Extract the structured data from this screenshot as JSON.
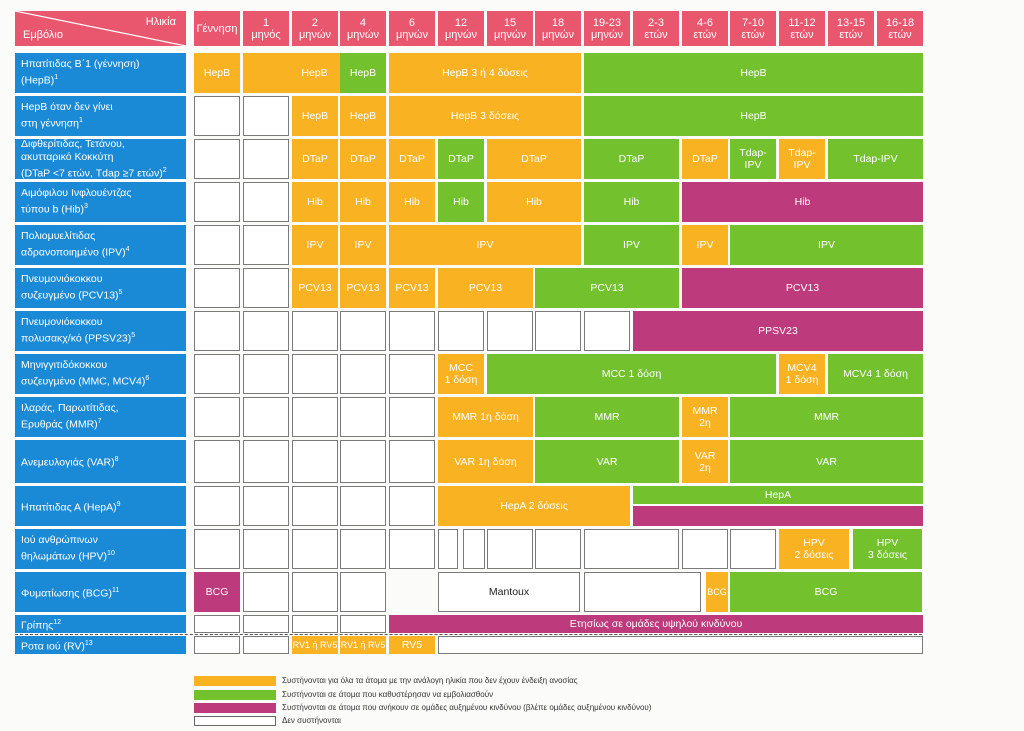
{
  "header": {
    "age_label": "Ηλικία",
    "vaccine_label": "Εμβόλιο",
    "ages": [
      "Γέννηση",
      "1\nμηνός",
      "2\nμηνών",
      "4\nμηνών",
      "6\nμηνών",
      "12\nμηνών",
      "15\nμηνών",
      "18\nμηνών",
      "19-23\nμηνών",
      "2-3\nετών",
      "4-6\nετών",
      "7-10\nετών",
      "11-12\nετών",
      "13-15\nετών",
      "16-18\nετών"
    ]
  },
  "vaccines": [
    {
      "line1": "Ηπατίτιδας Β΄1 (γέννηση)",
      "line2": "(HepB)",
      "sup": "1"
    },
    {
      "line1": "HepB όταν δεν γίνει",
      "line2": "στη γέννηση",
      "sup": "1"
    },
    {
      "line1": "Διφθερίτιδας, Τετάνου,",
      "line2": "ακυτταρικό Κοκκύτη",
      "line3": "(DTaP <7 ετών, Tdap ≥7 ετών)",
      "sup": "2"
    },
    {
      "line1": "Αιμόφιλου Ινφλουέντζας",
      "line2": "τύπου b (Hib)",
      "sup": "3"
    },
    {
      "line1": "Πολιομυελίτιδας",
      "line2": "αδρανοποιημένο (IPV)",
      "sup": "4"
    },
    {
      "line1": "Πνευμονιόκοκκου",
      "line2": "συζευγμένο (PCV13)",
      "sup": "5"
    },
    {
      "line1": "Πνευμονιόκοκκου",
      "line2": "πολυσακχ/κό (PPSV23)",
      "sup": "5"
    },
    {
      "line1": "Μηνιγγιτιδόκοκκου",
      "line2": "συζευγμένο (MMC, MCV4)",
      "sup": "6"
    },
    {
      "line1": "Ιλαράς, Παρωτίτιδας,",
      "line2": "Ερυθράς (MMR)",
      "sup": "7"
    },
    {
      "line1": "Ανεμευλογιάς (VAR)",
      "sup": "8"
    },
    {
      "line1": "Ηπατίτιδας Α (HepA)",
      "sup": "9"
    },
    {
      "line1": "Ιού ανθρώπινων",
      "line2": "θηλωμάτων (HPV)",
      "sup": "10"
    },
    {
      "line1": "Φυματίωσης (BCG)",
      "sup": "11"
    },
    {
      "line1": "Γρίπης",
      "sup": "12"
    },
    {
      "line1": "Ροτα ιού (RV)",
      "sup": "13"
    }
  ],
  "cells": {
    "hepb": "HepB",
    "hepb_3or4": "HepB 3 ή 4 δόσεις",
    "hepb_3": "HepB 3 δόσεις",
    "dtap": "DTaP",
    "tdap_ipv_a": "Tdap-\nIPV",
    "tdap_ipv": "Tdap-IPV",
    "hib": "Hib",
    "ipv": "IPV",
    "pcv13": "PCV13",
    "ppsv23": "PPSV23",
    "mcc_1": "MCC\n1 δόση",
    "mcc_1_long": "MCC 1 δόση",
    "mcv4_1": "MCV4\n1 δόση",
    "mcv4_1_long": "MCV4 1 δόση",
    "mmr_1": "MMR 1η δόση",
    "mmr": "MMR",
    "mmr_2": "MMR\n2η",
    "var_1": "VAR 1η δόση",
    "var": "VAR",
    "var_2": "VAR\n2η",
    "hepa_2": "HepA 2 δόσεις",
    "hepa": "HepA",
    "hpv_2": "HPV\n2 δόσεις",
    "hpv_3": "HPV\n3 δόσεις",
    "bcg": "BCG",
    "mantoux": "Mantoux",
    "flu": "Ετησίως σε ομάδες υψηλού κινδύνου",
    "rv1_rv5": "RV1 ή RV5",
    "rv5": "RV5"
  },
  "legend": [
    {
      "color": "#f9b322",
      "text": "Συστήνονται για όλα τα άτομα με την ανάλογη ηλικία που δεν έχουν ένδειξη ανοσίας"
    },
    {
      "color": "#74c12e",
      "text": "Συστήνονται σε άτομα που καθυστέρησαν να εμβολιασθούν"
    },
    {
      "color": "#bd3b7c",
      "text": "Συστήνονται σε άτομα που ανήκουν σε ομάδες αυξημένου κινδύνου (βλέπε ομάδες αυξημένου κινδύνου)"
    },
    {
      "color": "#ffffff",
      "text": "Δεν συστήνονται"
    }
  ],
  "colors": {
    "header": "#e9576f",
    "vaccine": "#1b8ad6",
    "orange": "#f9b322",
    "green": "#74c12e",
    "purple": "#bd3b7c"
  }
}
